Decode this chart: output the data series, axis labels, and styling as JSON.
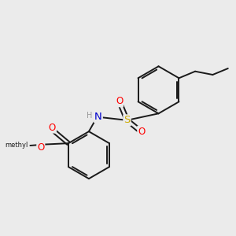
{
  "bg_color": "#ebebeb",
  "bond_color": "#1a1a1a",
  "bond_width": 1.4,
  "atom_colors": {
    "O": "#ff0000",
    "N": "#0000cc",
    "S": "#ccaa00",
    "C": "#1a1a1a",
    "H": "#999999"
  },
  "font_size": 8.5
}
